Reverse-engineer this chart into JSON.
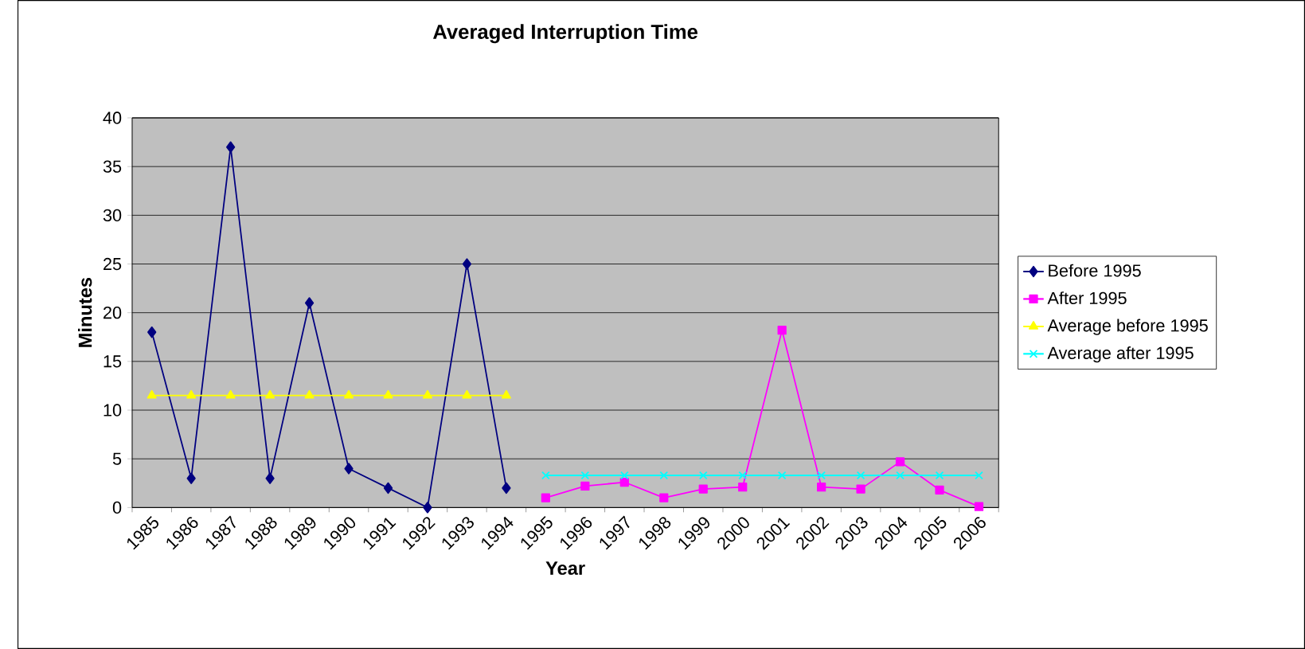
{
  "chart_data": {
    "type": "line",
    "title": "Averaged Interruption Time",
    "xlabel": "Year",
    "ylabel": "Minutes",
    "categories": [
      "1985",
      "1986",
      "1987",
      "1988",
      "1989",
      "1990",
      "1991",
      "1992",
      "1993",
      "1994",
      "1995",
      "1996",
      "1997",
      "1998",
      "1999",
      "2000",
      "2001",
      "2002",
      "2003",
      "2004",
      "2005",
      "2006"
    ],
    "series": [
      {
        "name": "Before 1995",
        "color": "#000080",
        "marker": "diamond",
        "values": [
          18,
          3,
          37,
          3,
          21,
          4,
          2,
          0,
          25,
          2,
          null,
          null,
          null,
          null,
          null,
          null,
          null,
          null,
          null,
          null,
          null,
          null
        ]
      },
      {
        "name": "After 1995",
        "color": "#ff00ff",
        "marker": "square",
        "values": [
          null,
          null,
          null,
          null,
          null,
          null,
          null,
          null,
          null,
          null,
          1,
          2.2,
          2.6,
          1,
          1.9,
          2.1,
          18.2,
          2.1,
          1.9,
          4.7,
          1.8,
          0.1
        ]
      },
      {
        "name": "Average before 1995",
        "color": "#ffff00",
        "marker": "triangle",
        "values": [
          11.5,
          11.5,
          11.5,
          11.5,
          11.5,
          11.5,
          11.5,
          11.5,
          11.5,
          11.5,
          null,
          null,
          null,
          null,
          null,
          null,
          null,
          null,
          null,
          null,
          null,
          null
        ]
      },
      {
        "name": "Average after 1995",
        "color": "#00ffff",
        "marker": "cross",
        "values": [
          null,
          null,
          null,
          null,
          null,
          null,
          null,
          null,
          null,
          null,
          3.3,
          3.3,
          3.3,
          3.3,
          3.3,
          3.3,
          3.3,
          3.3,
          3.3,
          3.3,
          3.3,
          3.3
        ]
      }
    ],
    "ylim": [
      0,
      40
    ],
    "yticks": [
      0,
      5,
      10,
      15,
      20,
      25,
      30,
      35,
      40
    ],
    "grid": "y",
    "legend": "right",
    "line_style": "solid"
  }
}
